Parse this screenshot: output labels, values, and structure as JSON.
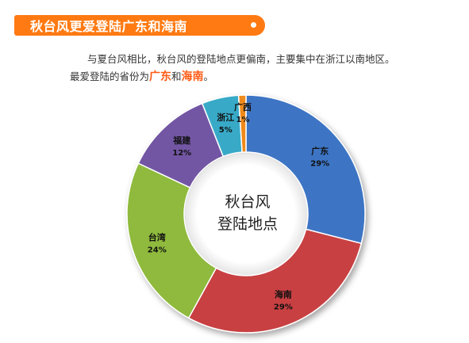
{
  "header": {
    "title": "秋台风更爱登陆广东和海南"
  },
  "description": {
    "line1": "与夏台风相比，秋台风的登陆地点更偏南，主要集中在浙江以南地区。",
    "line2_prefix": "最爱登陆的省份为",
    "highlight1": "广东",
    "connector": "和",
    "highlight2": "海南",
    "line2_suffix": "。"
  },
  "chart_data": {
    "type": "pie",
    "donut": true,
    "title": "",
    "center_label": [
      "秋台风",
      "登陆地点"
    ],
    "start_angle_deg": 0,
    "direction": "clockwise",
    "slices": [
      {
        "label": "广东",
        "value": 29,
        "value_label": "29%",
        "color": "#3d75c4"
      },
      {
        "label": "海南",
        "value": 29,
        "value_label": "29%",
        "color": "#c84042"
      },
      {
        "label": "台湾",
        "value": 24,
        "value_label": "24%",
        "color": "#8fba3e"
      },
      {
        "label": "福建",
        "value": 12,
        "value_label": "12%",
        "color": "#7257a3"
      },
      {
        "label": "浙江",
        "value": 5,
        "value_label": "5%",
        "color": "#38aac8"
      },
      {
        "label": "广西",
        "value": 1,
        "value_label": "1%",
        "color": "#ef8a1e"
      }
    ]
  },
  "colors": {
    "accent": "#ff7a12",
    "highlight_text": "#ff5a14"
  }
}
